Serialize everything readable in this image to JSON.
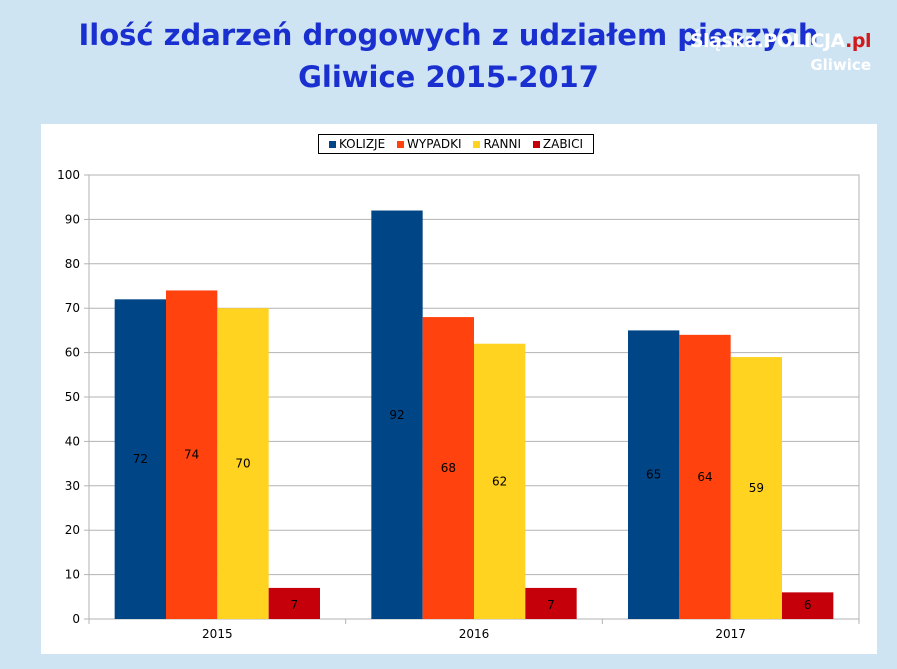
{
  "header": {
    "title_line1": "Ilość zdarzeń drogowych z udziałem pieszych",
    "title_line2": "Gliwice 2015-2017"
  },
  "logo": {
    "main": "Śląska.POLICJA",
    "suffix": ".pl",
    "sub": "Gliwice"
  },
  "chart_data": {
    "type": "bar",
    "title": "",
    "xlabel": "",
    "ylabel": "",
    "categories": [
      "2015",
      "2016",
      "2017"
    ],
    "series": [
      {
        "name": "KOLIZJE",
        "values": [
          72,
          92,
          65
        ],
        "color": "#004586"
      },
      {
        "name": "WYPADKI",
        "values": [
          74,
          68,
          64
        ],
        "color": "#ff420e"
      },
      {
        "name": "RANNI",
        "values": [
          70,
          62,
          59
        ],
        "color": "#ffd320"
      },
      {
        "name": "ZABICI",
        "values": [
          7,
          7,
          6
        ],
        "color": "#c5000b"
      }
    ],
    "ylim": [
      0,
      100
    ],
    "yticks": [
      0,
      10,
      20,
      30,
      40,
      50,
      60,
      70,
      80,
      90,
      100
    ],
    "grid": true,
    "legend": "top-center"
  }
}
